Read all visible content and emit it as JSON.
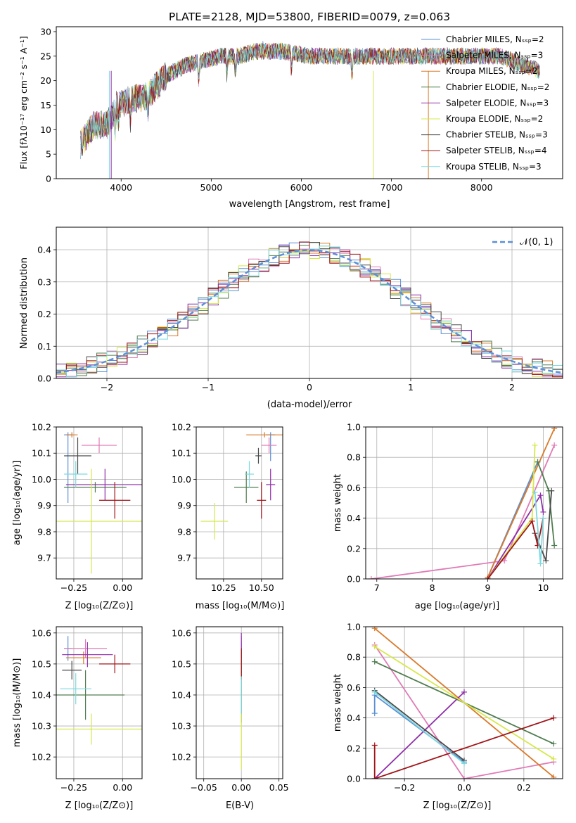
{
  "colors": [
    "#5b8fd6",
    "#e07ab6",
    "#d97a2b",
    "#4f7d4f",
    "#8e2ea8",
    "#d6e84a",
    "#4a4a4a",
    "#a01519",
    "#7dd9e0"
  ],
  "chart_data": [
    {
      "id": "spectrum",
      "type": "line",
      "title": "PLATE=2128, MJD=53800, FIBERID=0079, z=0.063",
      "xlabel": "wavelength [Angstrom, rest frame]",
      "ylabel": "Flux [fλ10⁻¹⁷ erg cm⁻² s⁻¹ A⁻¹]",
      "xlim": [
        3280,
        8900
      ],
      "ylim": [
        0,
        31
      ],
      "xticks": [
        4000,
        5000,
        6000,
        7000,
        8000
      ],
      "yticks": [
        0,
        5,
        10,
        15,
        20,
        25,
        30
      ],
      "legend_position": "top-right",
      "legend": [
        "Chabrier MILES, Nₛₛₚ=2",
        "Salpeter MILES, Nₛₛₚ=3",
        "Kroupa MILES, Nₛₛₚ=2",
        "Chabrier ELODIE, Nₛₛₚ=2",
        "Salpeter ELODIE, Nₛₛₚ=3",
        "Kroupa ELODIE, Nₛₛₚ=2",
        "Chabrier STELIB, Nₛₛₚ=3",
        "Salpeter STELIB, Nₛₛₚ=4",
        "Kroupa STELIB, Nₛₛₚ=3"
      ],
      "continuum": {
        "x": [
          3550,
          3700,
          3850,
          3950,
          4100,
          4300,
          4500,
          4700,
          4900,
          5100,
          5300,
          5500,
          5800,
          6100,
          6400,
          6700,
          7000,
          7300,
          7600,
          7900,
          8200,
          8500,
          8650
        ],
        "y": [
          7,
          11,
          11,
          15,
          16,
          17,
          21,
          23,
          24,
          25,
          25,
          26,
          26,
          25,
          25,
          25,
          25,
          25,
          25,
          25,
          25,
          23,
          22
        ]
      }
    },
    {
      "id": "residuals",
      "type": "line",
      "xlabel": "(data-model)/error",
      "ylabel": "Normed distribution",
      "xlim": [
        -2.5,
        2.5
      ],
      "ylim": [
        0,
        0.47
      ],
      "xticks": [
        -2,
        -1,
        0,
        1,
        2
      ],
      "xtick_labels": [
        "−2",
        "−1",
        "0",
        "1",
        "2"
      ],
      "yticks": [
        0.0,
        0.1,
        0.2,
        0.3,
        0.4
      ],
      "ytick_labels": [
        "0.0",
        "0.1",
        "0.2",
        "0.3",
        "0.4"
      ],
      "legend": [
        "𝒩(0, 1)"
      ],
      "legend_position": "top-right",
      "grid": true,
      "bin_width": 0.1
    },
    {
      "id": "age-vs-Z",
      "type": "scatter",
      "xlabel": "Z [log₁₀(Z/Z⊙)]",
      "ylabel": "age [log₁₀(age/yr)]",
      "xlim": [
        -0.34,
        0.1
      ],
      "ylim": [
        9.62,
        10.2
      ],
      "xticks": [
        -0.25,
        0.0
      ],
      "xtick_labels": [
        "−0.25",
        "0.00"
      ],
      "yticks": [
        9.7,
        9.8,
        9.9,
        10.0,
        10.1,
        10.2
      ],
      "ytick_labels": [
        "9.7",
        "9.8",
        "9.9",
        "10.0",
        "10.1",
        "10.2"
      ],
      "grid": true,
      "points": [
        {
          "x": -0.28,
          "y": 10.17,
          "xerr": 0.02,
          "yerr": [
            0.01,
            0.26
          ]
        },
        {
          "x": -0.12,
          "y": 10.13,
          "xerr": 0.09,
          "yerr": 0.03
        },
        {
          "x": -0.26,
          "y": 10.17,
          "xerr": 0.03,
          "yerr": 0.01
        },
        {
          "x": -0.14,
          "y": 9.97,
          "xerr": 0.16,
          "yerr": 0.02
        },
        {
          "x": -0.09,
          "y": 9.98,
          "xerr": 0.2,
          "yerr": 0.06
        },
        {
          "x": -0.16,
          "y": 9.84,
          "xerr": 0.26,
          "yerr": 0.2
        },
        {
          "x": -0.23,
          "y": 10.09,
          "xerr": 0.07,
          "yerr": 0.07
        },
        {
          "x": -0.04,
          "y": 9.92,
          "xerr": 0.08,
          "yerr": 0.07
        },
        {
          "x": -0.24,
          "y": 10.02,
          "xerr": 0.06,
          "yerr": 0.05
        }
      ]
    },
    {
      "id": "age-vs-mass",
      "type": "scatter",
      "xlabel": "mass [log₁₀(M/M⊙)]",
      "xlim": [
        10.07,
        10.64
      ],
      "ylim": [
        9.62,
        10.2
      ],
      "xticks": [
        10.25,
        10.5
      ],
      "xtick_labels": [
        "10.25",
        "10.50"
      ],
      "yticks": [
        9.7,
        9.8,
        9.9,
        10.0,
        10.1,
        10.2
      ],
      "ytick_labels": [
        "9.7",
        "9.8",
        "9.9",
        "10.0",
        "10.1",
        "10.2"
      ],
      "grid": true,
      "points": [
        {
          "x": 10.56,
          "y": 10.17,
          "xerr": 0.03,
          "yerr": [
            0.01,
            0.1
          ]
        },
        {
          "x": 10.55,
          "y": 10.13,
          "xerr": 0.05,
          "yerr": 0.03
        },
        {
          "x": 10.52,
          "y": 10.17,
          "xerr": 0.12,
          "yerr": 0.01
        },
        {
          "x": 10.4,
          "y": 9.97,
          "xerr": 0.08,
          "yerr": 0.06
        },
        {
          "x": 10.56,
          "y": 9.98,
          "xerr": 0.03,
          "yerr": 0.06
        },
        {
          "x": 10.19,
          "y": 9.84,
          "xerr": 0.09,
          "yerr": 0.07
        },
        {
          "x": 10.48,
          "y": 10.09,
          "xerr": 0.02,
          "yerr": 0.03
        },
        {
          "x": 10.5,
          "y": 9.92,
          "xerr": 0.03,
          "yerr": 0.07
        },
        {
          "x": 10.42,
          "y": 10.02,
          "xerr": 0.03,
          "yerr": 0.05
        }
      ]
    },
    {
      "id": "weight-vs-age",
      "type": "line",
      "xlabel": "age [log₁₀(age/yr)]",
      "ylabel": "mass weight",
      "xlim": [
        6.8,
        10.35
      ],
      "ylim": [
        0,
        1
      ],
      "xticks": [
        7,
        8,
        9,
        10
      ],
      "xtick_labels": [
        "7",
        "8",
        "9",
        "10"
      ],
      "yticks": [
        0.0,
        0.2,
        0.4,
        0.6,
        0.8,
        1.0
      ],
      "ytick_labels": [
        "0.0",
        "0.2",
        "0.4",
        "0.6",
        "0.8",
        "1.0"
      ],
      "grid": true,
      "series": [
        {
          "x": [
            9.0,
            9.9
          ],
          "y": [
            0.01,
            0.77
          ]
        },
        {
          "x": [
            6.9,
            9.3,
            10.2
          ],
          "y": [
            0.0,
            0.12,
            0.88
          ]
        },
        {
          "x": [
            9.0,
            10.2
          ],
          "y": [
            0.01,
            0.99
          ]
        },
        {
          "x": [
            9.9,
            10.1,
            10.2
          ],
          "y": [
            0.77,
            0.58,
            0.22
          ]
        },
        {
          "x": [
            9.0,
            9.95,
            10.0
          ],
          "y": [
            0.0,
            0.55,
            0.44
          ]
        },
        {
          "x": [
            9.0,
            9.8,
            9.85
          ],
          "y": [
            0.0,
            0.4,
            0.88
          ]
        },
        {
          "x": [
            9.85,
            10.05,
            10.15
          ],
          "y": [
            0.3,
            0.12,
            0.58
          ]
        },
        {
          "x": [
            9.0,
            9.8,
            9.9,
            10.0
          ],
          "y": [
            0.0,
            0.38,
            0.22,
            0.4
          ]
        },
        {
          "x": [
            9.85,
            9.95,
            10.0
          ],
          "y": [
            0.57,
            0.1,
            0.4
          ]
        }
      ]
    },
    {
      "id": "mass-vs-Z",
      "type": "scatter",
      "xlabel": "Z [log₁₀(Z/Z⊙)]",
      "ylabel": "mass [log₁₀(M/M⊙)]",
      "xlim": [
        -0.34,
        0.1
      ],
      "ylim": [
        10.13,
        10.62
      ],
      "xticks": [
        -0.25,
        0.0
      ],
      "xtick_labels": [
        "−0.25",
        "0.00"
      ],
      "yticks": [
        10.2,
        10.3,
        10.4,
        10.5,
        10.6
      ],
      "ytick_labels": [
        "10.2",
        "10.3",
        "10.4",
        "10.5",
        "10.6"
      ],
      "grid": true,
      "points": [
        {
          "x": -0.28,
          "y": 10.55,
          "xerr": 0.02,
          "yerr": 0.04
        },
        {
          "x": -0.19,
          "y": 10.55,
          "xerr": 0.11,
          "yerr": 0.03
        },
        {
          "x": -0.2,
          "y": 10.52,
          "xerr": 0.09,
          "yerr": 0.02
        },
        {
          "x": -0.19,
          "y": 10.4,
          "xerr": 0.2,
          "yerr": 0.08
        },
        {
          "x": -0.18,
          "y": 10.53,
          "xerr": 0.13,
          "yerr": 0.04
        },
        {
          "x": -0.16,
          "y": 10.29,
          "xerr": 0.26,
          "yerr": 0.05
        },
        {
          "x": -0.26,
          "y": 10.48,
          "xerr": 0.05,
          "yerr": 0.03
        },
        {
          "x": -0.04,
          "y": 10.5,
          "xerr": 0.08,
          "yerr": 0.03
        },
        {
          "x": -0.24,
          "y": 10.42,
          "xerr": 0.08,
          "yerr": 0.05
        }
      ]
    },
    {
      "id": "mass-vs-ebv",
      "type": "scatter",
      "xlabel": "E(B-V)",
      "xlim": [
        -0.06,
        0.055
      ],
      "ylim": [
        10.13,
        10.62
      ],
      "xticks": [
        -0.05,
        0.0,
        0.05
      ],
      "xtick_labels": [
        "−0.05",
        "0.00",
        "0.05"
      ],
      "yticks": [
        10.2,
        10.3,
        10.4,
        10.5,
        10.6
      ],
      "ytick_labels": [
        "10.2",
        "10.3",
        "10.4",
        "10.5",
        "10.6"
      ],
      "grid": true,
      "points": [
        {
          "x": 0.0,
          "y": 10.52,
          "yerr": 0.05
        },
        {
          "x": 0.0,
          "y": 10.55,
          "yerr": 0.04
        },
        {
          "x": 0.0,
          "y": 10.5,
          "yerr": 0.04
        },
        {
          "x": 0.0,
          "y": 10.38,
          "yerr": 0.07
        },
        {
          "x": 0.0,
          "y": 10.56,
          "yerr": 0.04
        },
        {
          "x": 0.0,
          "y": 10.25,
          "yerr": 0.09
        },
        {
          "x": 0.0,
          "y": 10.5,
          "yerr": 0.05
        },
        {
          "x": 0.0,
          "y": 10.5,
          "yerr": 0.05
        },
        {
          "x": 0.0,
          "y": 10.4,
          "yerr": 0.06
        }
      ]
    },
    {
      "id": "weight-vs-Z",
      "type": "line",
      "xlabel": "Z [log₁₀(Z/Z⊙)]",
      "ylabel": "mass weight",
      "xlim": [
        -0.33,
        0.33
      ],
      "ylim": [
        0,
        1
      ],
      "xticks": [
        -0.2,
        0.0,
        0.2
      ],
      "xtick_labels": [
        "−0.2",
        "0.0",
        "0.2"
      ],
      "yticks": [
        0.0,
        0.2,
        0.4,
        0.6,
        0.8,
        1.0
      ],
      "ytick_labels": [
        "0.0",
        "0.2",
        "0.4",
        "0.6",
        "0.8",
        "1.0"
      ],
      "grid": true,
      "series": [
        {
          "x": [
            -0.3,
            -0.3,
            0.0
          ],
          "y": [
            0.43,
            0.55,
            0.11
          ]
        },
        {
          "x": [
            -0.3,
            0.0,
            0.3
          ],
          "y": [
            0.88,
            0.0,
            0.11
          ]
        },
        {
          "x": [
            -0.3,
            0.3
          ],
          "y": [
            0.99,
            0.01
          ]
        },
        {
          "x": [
            -0.3,
            0.3
          ],
          "y": [
            0.77,
            0.23
          ]
        },
        {
          "x": [
            -0.3,
            0.0
          ],
          "y": [
            0.0,
            0.57
          ]
        },
        {
          "x": [
            -0.3,
            0.3
          ],
          "y": [
            0.87,
            0.13
          ]
        },
        {
          "x": [
            -0.3,
            0.0
          ],
          "y": [
            0.58,
            0.12
          ]
        },
        {
          "x": [
            -0.3,
            -0.3,
            0.3
          ],
          "y": [
            0.22,
            0.0,
            0.4
          ]
        },
        {
          "x": [
            -0.3,
            0.0
          ],
          "y": [
            0.57,
            0.1
          ]
        }
      ]
    }
  ]
}
